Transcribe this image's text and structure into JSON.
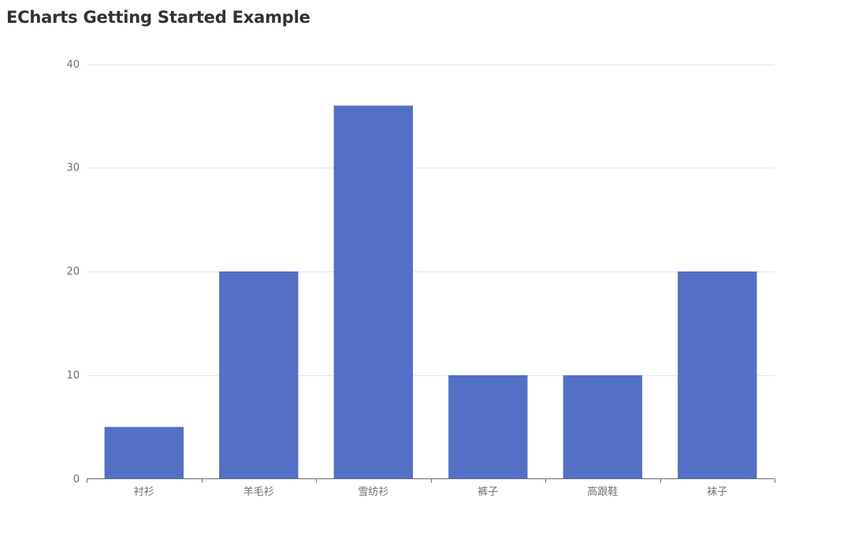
{
  "page": {
    "title": "ECharts Getting Started Example"
  },
  "chart_data": {
    "type": "bar",
    "categories": [
      "衬衫",
      "羊毛衫",
      "雪纺衫",
      "裤子",
      "高跟鞋",
      "袜子"
    ],
    "series": [
      {
        "values": [
          5,
          20,
          36,
          10,
          10,
          20
        ]
      }
    ],
    "ylim": [
      0,
      40
    ],
    "yticks": [
      0,
      10,
      20,
      30,
      40
    ],
    "grid": "horizontal",
    "colors": {
      "bar": "#5470c6",
      "grid": "#e0e6f1",
      "axis": "#6e7079",
      "label": "#6e7079"
    }
  }
}
